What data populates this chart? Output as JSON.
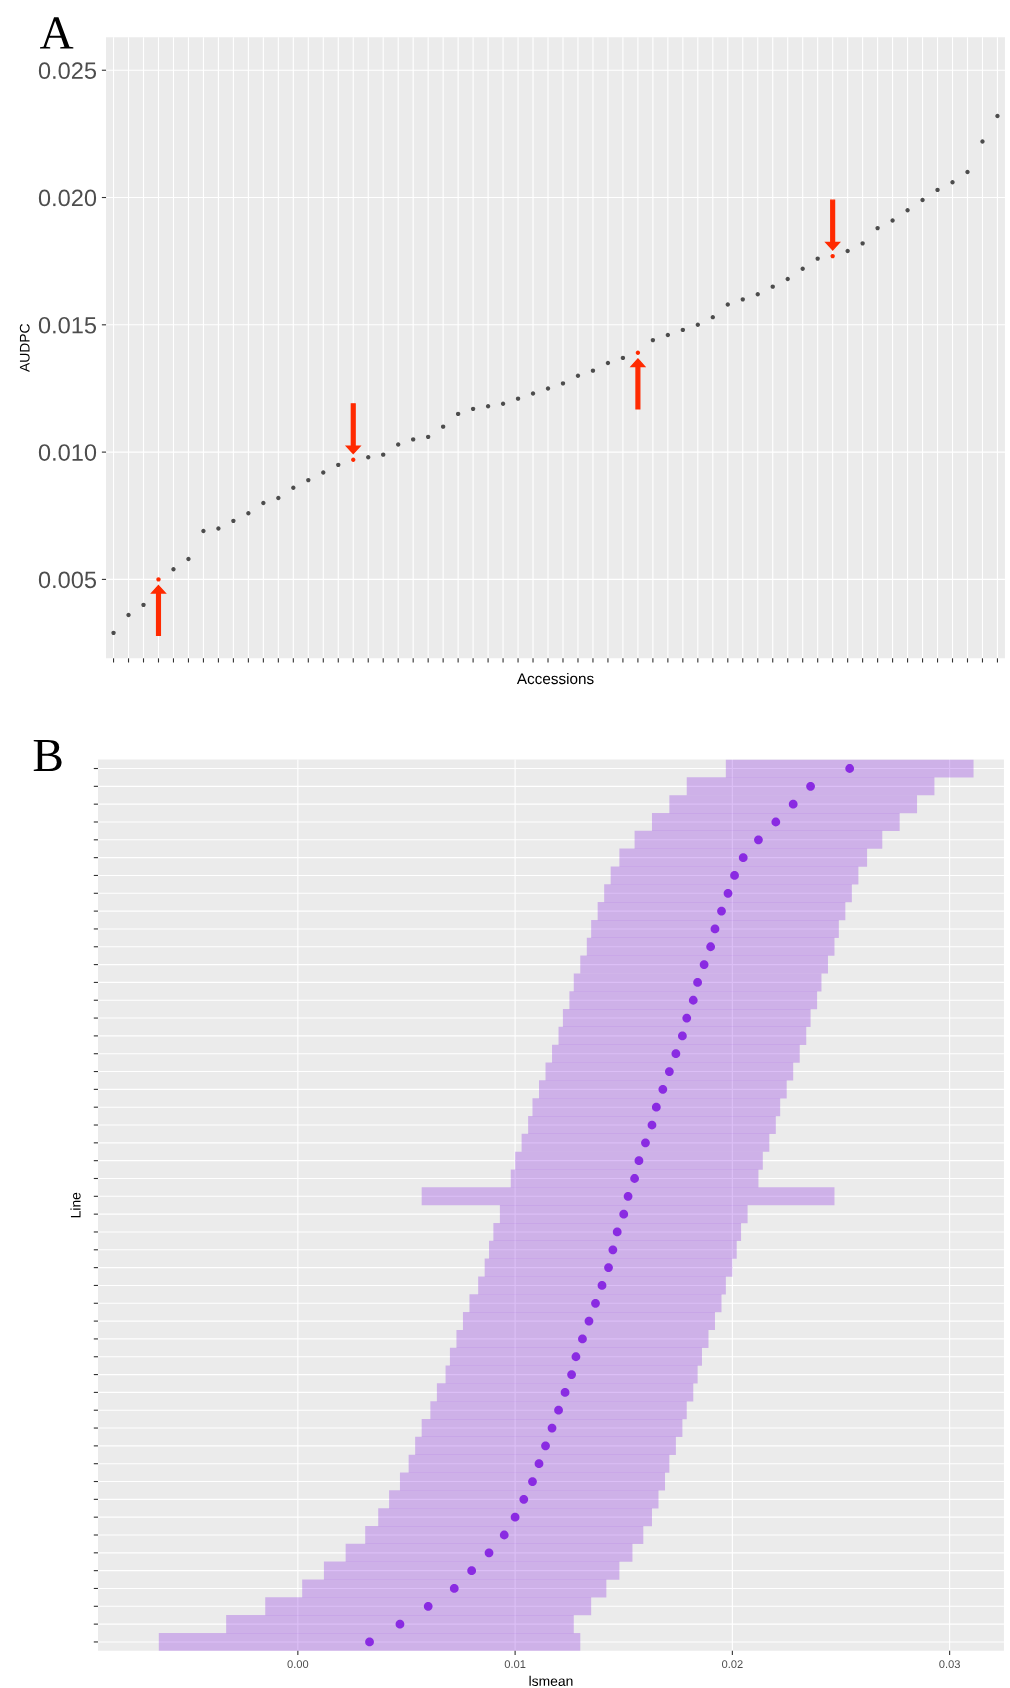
{
  "chart_data": [
    {
      "type": "scatter",
      "title": "A",
      "xlabel": "Accessions",
      "ylabel": "AUDPC",
      "color": "#4d4d4d",
      "marker": "circle",
      "grid": true,
      "categories": [
        null,
        null,
        null,
        null,
        null,
        null,
        null,
        null,
        null,
        null,
        null,
        null,
        null,
        null,
        null,
        null,
        null,
        null,
        null,
        null,
        null,
        null,
        null,
        null,
        null,
        null,
        null,
        null,
        null,
        null,
        null,
        null,
        null,
        null,
        null,
        null,
        null,
        null,
        null,
        null,
        null,
        null,
        null,
        null,
        null,
        null,
        null,
        null,
        null,
        null,
        null,
        null,
        null,
        null,
        null,
        null,
        null,
        null,
        null,
        null
      ],
      "values": [
        0.0029,
        0.0036,
        0.004,
        0.005,
        0.0054,
        0.0058,
        0.0069,
        0.007,
        0.0073,
        0.0076,
        0.008,
        0.0082,
        0.0086,
        0.0089,
        0.0092,
        0.0095,
        0.0097,
        0.0098,
        0.0099,
        0.0103,
        0.0105,
        0.0106,
        0.011,
        0.0115,
        0.0117,
        0.0118,
        0.0119,
        0.0121,
        0.0123,
        0.0125,
        0.0127,
        0.013,
        0.0132,
        0.0135,
        0.0137,
        0.0139,
        0.0144,
        0.0146,
        0.0148,
        0.015,
        0.0153,
        0.0158,
        0.016,
        0.0162,
        0.0165,
        0.0168,
        0.0172,
        0.0176,
        0.0177,
        0.0179,
        0.0182,
        0.0188,
        0.0191,
        0.0195,
        0.0199,
        0.0203,
        0.0206,
        0.021,
        0.0222,
        0.0232
      ],
      "colors": [
        "#4d4d4d",
        "#4d4d4d",
        "#4d4d4d",
        "#ff2a00",
        "#4d4d4d",
        "#4d4d4d",
        "#4d4d4d",
        "#4d4d4d",
        "#4d4d4d",
        "#4d4d4d",
        "#4d4d4d",
        "#4d4d4d",
        "#4d4d4d",
        "#4d4d4d",
        "#4d4d4d",
        "#4d4d4d",
        "#ff2a00",
        "#4d4d4d",
        "#4d4d4d",
        "#4d4d4d",
        "#4d4d4d",
        "#4d4d4d",
        "#4d4d4d",
        "#4d4d4d",
        "#4d4d4d",
        "#4d4d4d",
        "#4d4d4d",
        "#4d4d4d",
        "#4d4d4d",
        "#4d4d4d",
        "#4d4d4d",
        "#4d4d4d",
        "#4d4d4d",
        "#4d4d4d",
        "#4d4d4d",
        "#ff2a00",
        "#4d4d4d",
        "#4d4d4d",
        "#4d4d4d",
        "#4d4d4d",
        "#4d4d4d",
        "#4d4d4d",
        "#4d4d4d",
        "#4d4d4d",
        "#4d4d4d",
        "#4d4d4d",
        "#4d4d4d",
        "#4d4d4d",
        "#ff2a00",
        "#4d4d4d",
        "#4d4d4d",
        "#4d4d4d",
        "#4d4d4d",
        "#4d4d4d",
        "#4d4d4d",
        "#4d4d4d",
        "#4d4d4d",
        "#4d4d4d",
        "#4d4d4d",
        "#4d4d4d"
      ],
      "ylim": [
        0.0019,
        0.0263
      ],
      "yticks": [
        {
          "value": 0.005,
          "label": "0.005"
        },
        {
          "value": 0.01,
          "label": "0.010"
        },
        {
          "value": 0.015,
          "label": "0.015"
        },
        {
          "value": 0.02,
          "label": "0.020"
        },
        {
          "value": 0.025,
          "label": "0.025"
        }
      ]
    },
    {
      "type": "scatter",
      "title": "B",
      "xlabel": "lsmean",
      "ylabel": "Line",
      "orientation": "horizontal",
      "color": "#8a2be2",
      "marker": "circle",
      "grid": true,
      "categories": [
        null,
        null,
        null,
        null,
        null,
        null,
        null,
        null,
        null,
        null,
        null,
        null,
        null,
        null,
        null,
        null,
        null,
        null,
        null,
        null,
        null,
        null,
        null,
        null,
        null,
        null,
        null,
        null,
        null,
        null,
        null,
        null,
        null,
        null,
        null,
        null,
        null,
        null,
        null,
        null,
        null,
        null,
        null,
        null,
        null,
        null,
        null,
        null,
        null,
        null
      ],
      "values": [
        0.0254,
        0.0236,
        0.0228,
        0.022,
        0.0212,
        0.0205,
        0.0201,
        0.0198,
        0.0195,
        0.0192,
        0.019,
        0.0187,
        0.0184,
        0.0182,
        0.0179,
        0.0177,
        0.0174,
        0.0171,
        0.0168,
        0.0165,
        0.0163,
        0.016,
        0.0157,
        0.0155,
        0.0152,
        0.015,
        0.0147,
        0.0145,
        0.0143,
        0.014,
        0.0137,
        0.0134,
        0.0131,
        0.0128,
        0.0126,
        0.0123,
        0.012,
        0.0117,
        0.0114,
        0.0111,
        0.0108,
        0.0104,
        0.01,
        0.0095,
        0.0088,
        0.008,
        0.0072,
        0.006,
        0.0047,
        0.0033
      ],
      "errors": [
        0.0057,
        0.0057,
        0.0057,
        0.0057,
        0.0057,
        0.0057,
        0.0057,
        0.0057,
        0.0057,
        0.0057,
        0.0057,
        0.0057,
        0.0057,
        0.0057,
        0.0057,
        0.0057,
        0.0057,
        0.0057,
        0.0057,
        0.0057,
        0.0057,
        0.0057,
        0.0057,
        0.0057,
        0.0095,
        0.0057,
        0.0057,
        0.0057,
        0.0057,
        0.0057,
        0.0058,
        0.0058,
        0.0058,
        0.0058,
        0.0058,
        0.0059,
        0.0059,
        0.006,
        0.006,
        0.006,
        0.0061,
        0.0062,
        0.0063,
        0.0064,
        0.0066,
        0.0068,
        0.007,
        0.0075,
        0.008,
        0.0097
      ],
      "xlim": [
        -0.0092,
        0.0325
      ],
      "xticks": [
        {
          "value": 0,
          "label": "0.00"
        },
        {
          "value": 0.01,
          "label": "0.01"
        },
        {
          "value": 0.02,
          "label": "0.02"
        },
        {
          "value": 0.03,
          "label": "0.03"
        }
      ]
    }
  ]
}
